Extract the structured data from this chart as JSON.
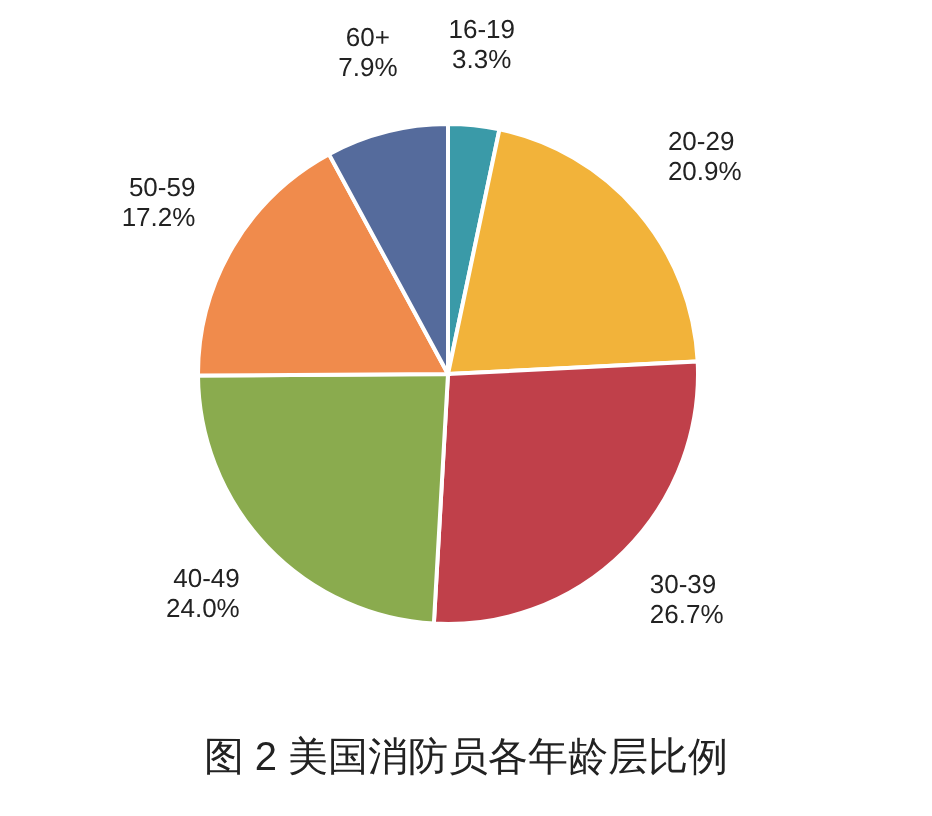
{
  "chart_data": {
    "type": "pie",
    "title": "图 2 美国消防员各年龄层比例",
    "categories": [
      "16-19",
      "20-29",
      "30-39",
      "40-49",
      "50-59",
      "60+"
    ],
    "values": [
      3.3,
      20.9,
      26.7,
      24.0,
      17.2,
      7.9
    ],
    "value_labels": [
      "3.3%",
      "20.9%",
      "26.7%",
      "24.0%",
      "17.2%",
      "7.9%"
    ],
    "colors": [
      "#3a9aa8",
      "#f2b33a",
      "#c0404a",
      "#8aab4e",
      "#f08b4c",
      "#556b9c"
    ]
  }
}
